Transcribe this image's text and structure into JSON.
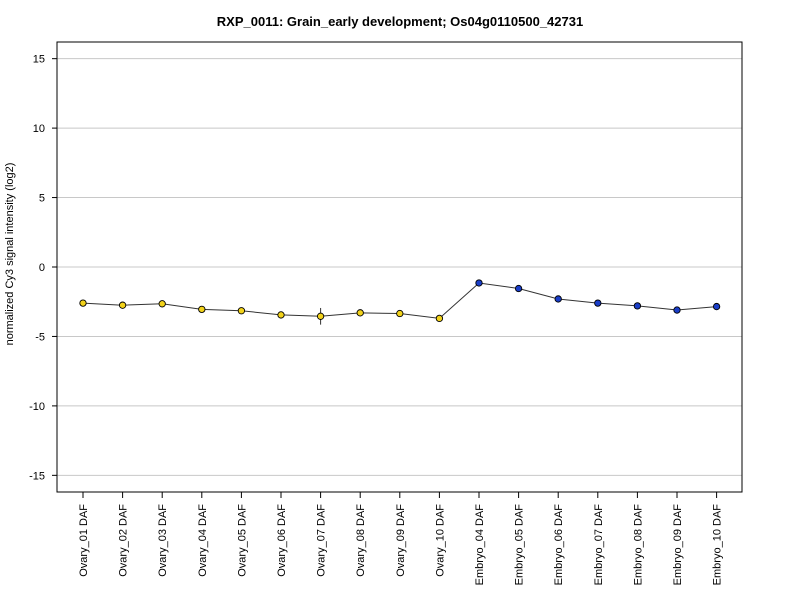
{
  "chart_data": {
    "type": "line",
    "title": "RXP_0011: Grain_early development; Os04g0110500_42731",
    "xlabel": "",
    "ylabel": "normalized Cy3 signal intensity (log2)",
    "ylim": [
      -16.2,
      16.2
    ],
    "yticks": [
      -15,
      -10,
      -5,
      0,
      5,
      10,
      15
    ],
    "grid": true,
    "categories": [
      "Ovary_01 DAF",
      "Ovary_02 DAF",
      "Ovary_03 DAF",
      "Ovary_04 DAF",
      "Ovary_05 DAF",
      "Ovary_06 DAF",
      "Ovary_07 DAF",
      "Ovary_08 DAF",
      "Ovary_09 DAF",
      "Ovary_10 DAF",
      "Embryo_04 DAF",
      "Embryo_05 DAF",
      "Embryo_06 DAF",
      "Embryo_07 DAF",
      "Embryo_08 DAF",
      "Embryo_09 DAF",
      "Embryo_10 DAF"
    ],
    "values": [
      -2.6,
      -2.75,
      -2.65,
      -3.05,
      -3.15,
      -3.45,
      -3.55,
      -3.3,
      -3.35,
      -3.7,
      -1.15,
      -1.55,
      -2.3,
      -2.6,
      -2.8,
      -3.1,
      -2.85
    ],
    "errors": [
      0.1,
      0.1,
      0.1,
      0.1,
      0.1,
      0.1,
      0.6,
      0.1,
      0.1,
      0.1,
      0.1,
      0.1,
      0.1,
      0.1,
      0.1,
      0.1,
      0.1
    ],
    "point_colors": [
      "#f2d21a",
      "#f2d21a",
      "#f2d21a",
      "#f2d21a",
      "#f2d21a",
      "#f2d21a",
      "#f2d21a",
      "#f2d21a",
      "#f2d21a",
      "#f2d21a",
      "#1a3ec8",
      "#1a3ec8",
      "#1a3ec8",
      "#1a3ec8",
      "#1a3ec8",
      "#1a3ec8",
      "#1a3ec8"
    ],
    "line_color": "#333333",
    "grid_color": "#c8c8c8"
  }
}
